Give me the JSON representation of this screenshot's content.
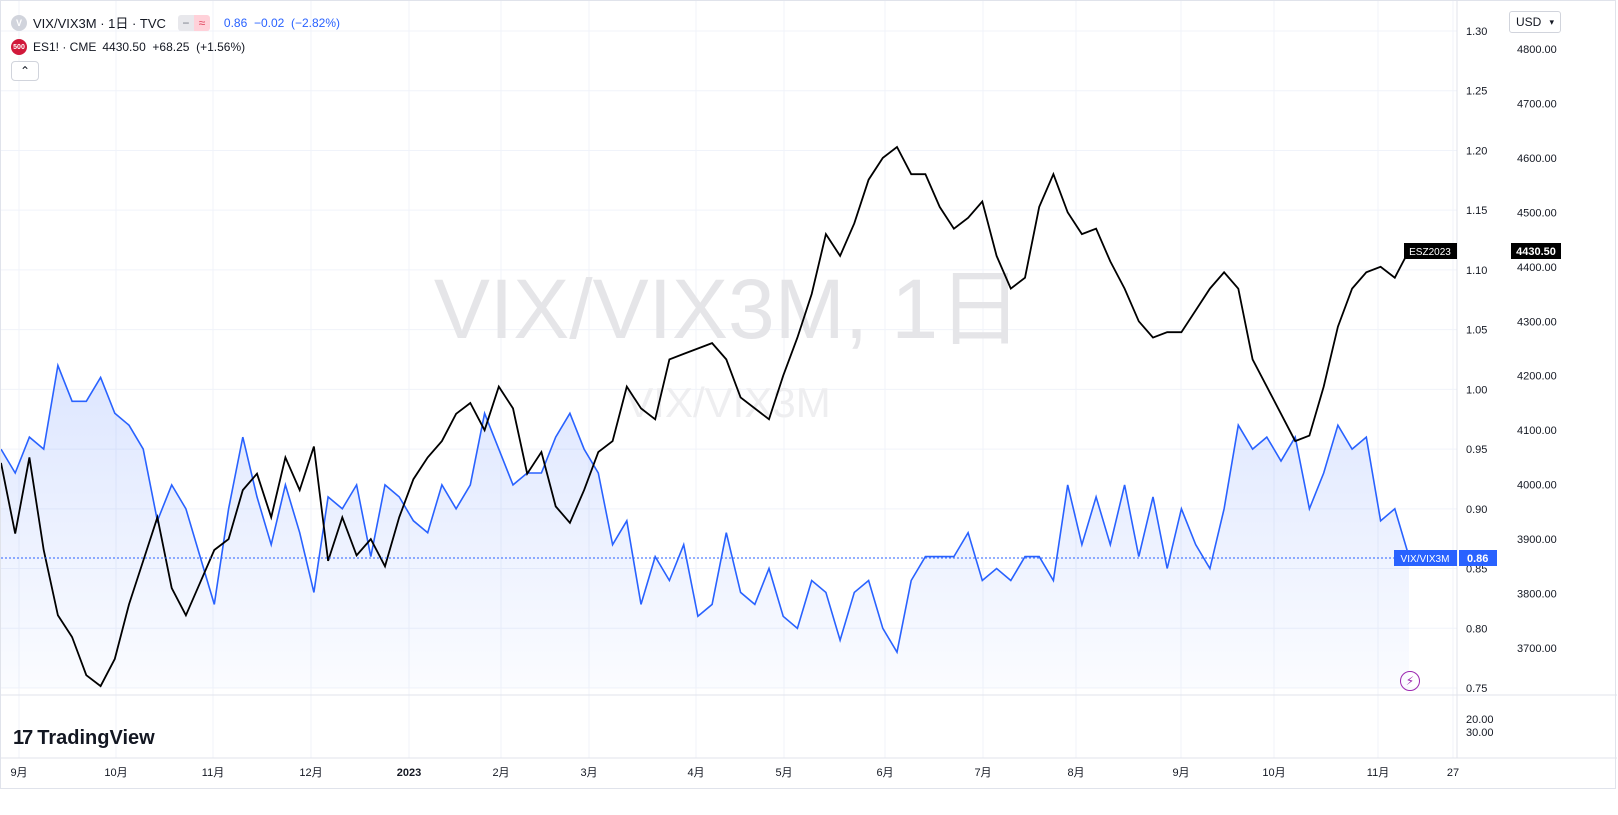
{
  "header": {
    "symbol_name": "VIX/VIX3M · 1日 · TVC",
    "symbol_values": "0.86  −0.02  (−2.82%)",
    "compare_symbol": "ES1! · CME",
    "compare_values": "4430.50  +68.25  (+1.56%)",
    "compare_badge": "500",
    "collapse_icon": "chevron-up-icon"
  },
  "toolbar": {
    "currency": "USD",
    "currency_icon": "chevron-down-icon"
  },
  "watermark": {
    "main": "VIX/VIX3M, 1日",
    "sub": "VIX/VIX3M"
  },
  "brand": {
    "name": "TradingView",
    "logo_mark": "17"
  },
  "colors": {
    "ratio": "#2962ff",
    "futures": "#000000",
    "background": "#ffffff",
    "grid": "#f0f3fa"
  },
  "chart_data": {
    "type": "line",
    "x_axis_labels": [
      "9月",
      "10月",
      "11月",
      "12月",
      "2023",
      "2月",
      "3月",
      "4月",
      "5月",
      "6月",
      "7月",
      "8月",
      "9月",
      "10月",
      "11月",
      "27"
    ],
    "right_axis_ratio_ticks": [
      "1.30",
      "1.25",
      "1.20",
      "1.15",
      "1.10",
      "1.05",
      "1.00",
      "0.95",
      "0.90",
      "0.85",
      "0.80",
      "0.75"
    ],
    "right_axis_price_ticks": [
      "4800.00",
      "4700.00",
      "4600.00",
      "4500.00",
      "4400.00",
      "4300.00",
      "4200.00",
      "4100.00",
      "4000.00",
      "3900.00",
      "3800.00",
      "3700.00"
    ],
    "lower_pane_ticks": [
      "20.00",
      "30.00"
    ],
    "ratio_ylim": [
      0.75,
      1.3
    ],
    "price_ylim": [
      3625,
      4855
    ],
    "series": [
      {
        "name": "VIX/VIX3M",
        "last_label": "VIX/VIX3M",
        "last_value": "0.86",
        "values": [
          0.95,
          0.93,
          0.96,
          0.95,
          1.02,
          0.99,
          0.99,
          1.01,
          0.98,
          0.97,
          0.95,
          0.89,
          0.92,
          0.9,
          0.86,
          0.82,
          0.9,
          0.96,
          0.91,
          0.87,
          0.92,
          0.88,
          0.83,
          0.91,
          0.9,
          0.92,
          0.86,
          0.92,
          0.91,
          0.89,
          0.88,
          0.92,
          0.9,
          0.92,
          0.98,
          0.95,
          0.92,
          0.93,
          0.93,
          0.96,
          0.98,
          0.95,
          0.93,
          0.87,
          0.89,
          0.82,
          0.86,
          0.84,
          0.87,
          0.81,
          0.82,
          0.88,
          0.83,
          0.82,
          0.85,
          0.81,
          0.8,
          0.84,
          0.83,
          0.79,
          0.83,
          0.84,
          0.8,
          0.78,
          0.84,
          0.86,
          0.86,
          0.86,
          0.88,
          0.84,
          0.85,
          0.84,
          0.86,
          0.86,
          0.84,
          0.92,
          0.87,
          0.91,
          0.87,
          0.92,
          0.86,
          0.91,
          0.85,
          0.9,
          0.87,
          0.85,
          0.9,
          0.97,
          0.95,
          0.96,
          0.94,
          0.96,
          0.9,
          0.93,
          0.97,
          0.95,
          0.96,
          0.89,
          0.9,
          0.86
        ]
      },
      {
        "name": "ES1! · CME",
        "last_label": "ESZ2023",
        "last_value": "4430.50",
        "values": [
          4040,
          3910,
          4050,
          3880,
          3760,
          3720,
          3650,
          3630,
          3680,
          3780,
          3860,
          3940,
          3810,
          3760,
          3820,
          3880,
          3900,
          3990,
          4020,
          3940,
          4050,
          3990,
          4070,
          3860,
          3940,
          3870,
          3900,
          3850,
          3940,
          4010,
          4050,
          4080,
          4130,
          4150,
          4100,
          4180,
          4140,
          4020,
          4060,
          3960,
          3930,
          3990,
          4060,
          4080,
          4180,
          4140,
          4120,
          4230,
          4240,
          4250,
          4260,
          4230,
          4160,
          4140,
          4120,
          4200,
          4270,
          4350,
          4460,
          4420,
          4480,
          4560,
          4600,
          4620,
          4570,
          4570,
          4510,
          4470,
          4490,
          4520,
          4420,
          4360,
          4380,
          4510,
          4570,
          4500,
          4460,
          4470,
          4410,
          4360,
          4300,
          4270,
          4280,
          4280,
          4320,
          4360,
          4390,
          4360,
          4230,
          4180,
          4130,
          4080,
          4090,
          4180,
          4290,
          4360,
          4390,
          4400,
          4380,
          4430
        ]
      }
    ]
  }
}
